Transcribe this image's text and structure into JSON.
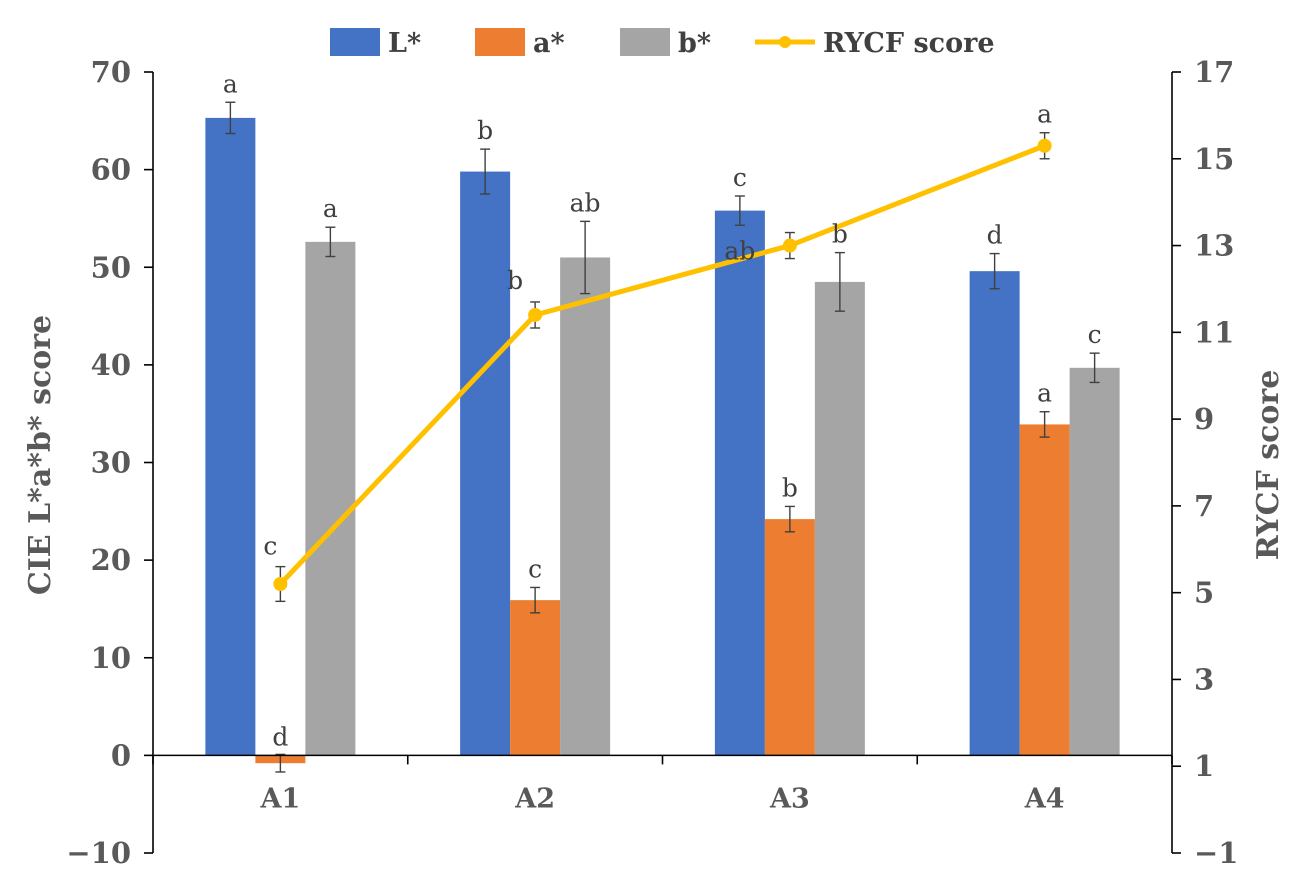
{
  "chart_data": {
    "type": "bar",
    "categories": [
      "A1",
      "A2",
      "A3",
      "A4"
    ],
    "series": [
      {
        "name": "L*",
        "color": "#4472C4",
        "values": [
          65.3,
          59.8,
          55.8,
          49.6
        ],
        "errors": [
          1.6,
          2.3,
          1.5,
          1.8
        ],
        "labels": [
          "a",
          "b",
          "c",
          "d"
        ]
      },
      {
        "name": "a*",
        "color": "#ED7D31",
        "values": [
          -0.8,
          15.9,
          24.2,
          33.9
        ],
        "errors": [
          0.9,
          1.3,
          1.3,
          1.3
        ],
        "labels": [
          "d",
          "c",
          "b",
          "a"
        ]
      },
      {
        "name": "b*",
        "color": "#A5A5A5",
        "values": [
          52.6,
          51.0,
          48.5,
          39.7
        ],
        "errors": [
          1.5,
          3.7,
          3.0,
          1.5
        ],
        "labels": [
          "a",
          "ab",
          "b",
          "c"
        ]
      }
    ],
    "line_series": {
      "name": "RYCF score",
      "color": "#FFC000",
      "axis": "right",
      "values": [
        5.2,
        11.4,
        13.0,
        15.3
      ],
      "errors": [
        0.4,
        0.3,
        0.3,
        0.3
      ],
      "labels": [
        "c",
        "b",
        "ab",
        "a"
      ]
    },
    "y_left": {
      "label": "CIE L*a*b* score",
      "ylim": [
        -10,
        70
      ],
      "ticks": [
        -10,
        0,
        10,
        20,
        30,
        40,
        50,
        60,
        70
      ],
      "tick_labels": [
        "−10",
        "0",
        "10",
        "20",
        "30",
        "40",
        "50",
        "60",
        "70"
      ]
    },
    "y_right": {
      "label": "RYCF score",
      "ylim": [
        -1,
        17
      ],
      "ticks": [
        -1,
        1,
        3,
        5,
        7,
        9,
        11,
        13,
        15,
        17
      ],
      "tick_labels": [
        "−1",
        "1",
        "3",
        "5",
        "7",
        "9",
        "11",
        "13",
        "15",
        "17"
      ]
    },
    "legend_position": "top",
    "grid": false
  }
}
